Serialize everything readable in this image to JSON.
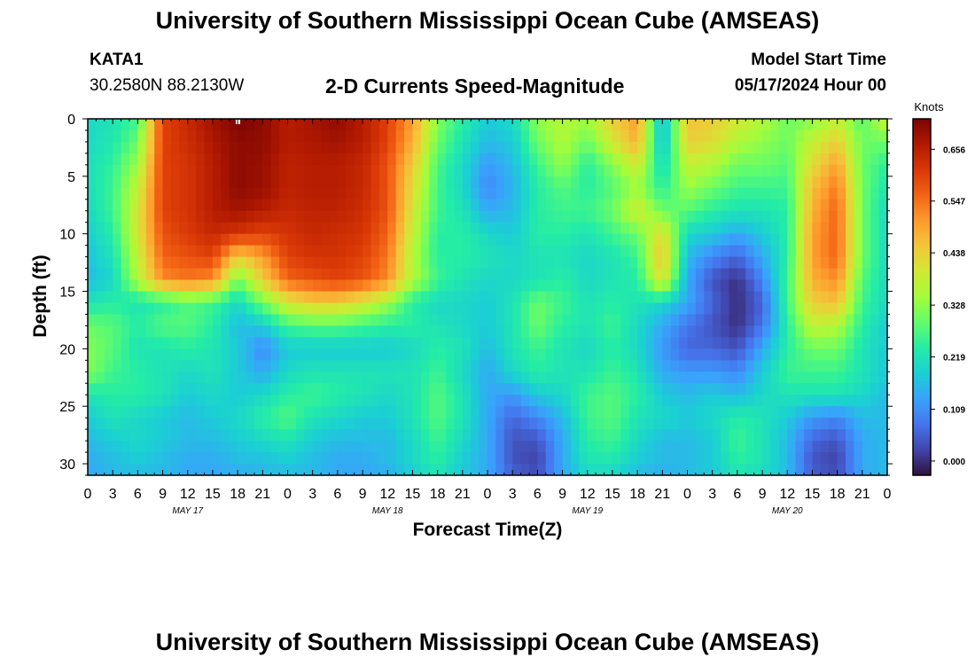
{
  "header": {
    "title": "University of Southern Mississippi Ocean Cube (AMSEAS)",
    "station_id": "KATA1",
    "coordinates": "30.2580N  88.2130W",
    "chart_title": "2-D Currents Speed-Magnitude",
    "model_start_label": "Model Start Time",
    "model_start_value": "05/17/2024 Hour 00"
  },
  "footer": {
    "title": "University of Southern Mississippi Ocean Cube (AMSEAS)"
  },
  "chart_data": {
    "type": "heatmap",
    "title": "2-D Currents Speed-Magnitude",
    "xlabel": "Forecast Time(Z)",
    "ylabel": "Depth (ft)",
    "x_range_hours": [
      0,
      96
    ],
    "y_range_ft": [
      0,
      31
    ],
    "x_tick_labels": [
      "0",
      "3",
      "6",
      "9",
      "12",
      "15",
      "18",
      "21",
      "0",
      "3",
      "6",
      "9",
      "12",
      "15",
      "18",
      "21",
      "0",
      "3",
      "6",
      "9",
      "12",
      "15",
      "18",
      "21",
      "0",
      "3",
      "6",
      "9",
      "12",
      "15",
      "18",
      "21",
      "0"
    ],
    "y_ticks": [
      0,
      5,
      10,
      15,
      20,
      25,
      30
    ],
    "y_tick_labels": [
      "0",
      "5",
      "10",
      "15",
      "20",
      "25",
      "30"
    ],
    "day_labels": [
      {
        "text": "MAY 17",
        "hour": 12
      },
      {
        "text": "MAY 18",
        "hour": 36
      },
      {
        "text": "MAY 19",
        "hour": 60
      },
      {
        "text": "MAY 20",
        "hour": 84
      }
    ],
    "colorbar": {
      "unit": "Knots",
      "range": [
        -0.03,
        0.72
      ],
      "ticks": [
        0.0,
        0.109,
        0.219,
        0.328,
        0.438,
        0.547,
        0.656
      ],
      "tick_labels": [
        "0.000",
        "0.109",
        "0.219",
        "0.328",
        "0.438",
        "0.547",
        "0.656"
      ]
    },
    "colors": {
      "speed_scale": [
        "#30123b",
        "#4145ab",
        "#4675ed",
        "#39a2fc",
        "#1bcfd4",
        "#24eca6",
        "#61fc6c",
        "#a4fc3b",
        "#d1e834",
        "#f3c63a",
        "#fe9b2d",
        "#f36315",
        "#d93806",
        "#b11901",
        "#7a0403"
      ]
    },
    "field_depths_ft": [
      0,
      2,
      4,
      6,
      8,
      10,
      12,
      14,
      16,
      18,
      20,
      22,
      24,
      26,
      28,
      30,
      31
    ],
    "field_hours": [
      0,
      3,
      6,
      9,
      12,
      15,
      18,
      21,
      24,
      27,
      30,
      33,
      36,
      39,
      42,
      45,
      48,
      51,
      54,
      57,
      60,
      63,
      66,
      69,
      72,
      75,
      78,
      81,
      84,
      87,
      90,
      93,
      96
    ],
    "speed_field_knots": [
      [
        0.2,
        0.22,
        0.26,
        0.6,
        0.64,
        0.68,
        0.72,
        0.7,
        0.66,
        0.68,
        0.7,
        0.66,
        0.6,
        0.5,
        0.32,
        0.24,
        0.18,
        0.2,
        0.33,
        0.36,
        0.34,
        0.44,
        0.5,
        0.15,
        0.46,
        0.44,
        0.4,
        0.36,
        0.3,
        0.32,
        0.38,
        0.28,
        0.4
      ],
      [
        0.2,
        0.23,
        0.3,
        0.6,
        0.63,
        0.67,
        0.7,
        0.7,
        0.66,
        0.67,
        0.68,
        0.66,
        0.6,
        0.48,
        0.3,
        0.22,
        0.16,
        0.18,
        0.3,
        0.36,
        0.3,
        0.4,
        0.48,
        0.16,
        0.44,
        0.42,
        0.36,
        0.33,
        0.3,
        0.38,
        0.44,
        0.3,
        0.3
      ],
      [
        0.21,
        0.25,
        0.34,
        0.6,
        0.62,
        0.66,
        0.7,
        0.69,
        0.65,
        0.66,
        0.66,
        0.64,
        0.58,
        0.44,
        0.27,
        0.2,
        0.12,
        0.16,
        0.26,
        0.33,
        0.24,
        0.32,
        0.4,
        0.2,
        0.38,
        0.36,
        0.3,
        0.3,
        0.28,
        0.42,
        0.5,
        0.3,
        0.24
      ],
      [
        0.21,
        0.26,
        0.38,
        0.6,
        0.62,
        0.66,
        0.7,
        0.69,
        0.65,
        0.66,
        0.66,
        0.64,
        0.58,
        0.42,
        0.26,
        0.2,
        0.1,
        0.15,
        0.24,
        0.28,
        0.24,
        0.28,
        0.34,
        0.24,
        0.34,
        0.3,
        0.26,
        0.26,
        0.26,
        0.46,
        0.54,
        0.3,
        0.22
      ],
      [
        0.2,
        0.26,
        0.4,
        0.6,
        0.62,
        0.66,
        0.68,
        0.66,
        0.64,
        0.65,
        0.65,
        0.63,
        0.58,
        0.4,
        0.26,
        0.22,
        0.14,
        0.16,
        0.24,
        0.26,
        0.26,
        0.3,
        0.4,
        0.3,
        0.28,
        0.24,
        0.22,
        0.22,
        0.24,
        0.48,
        0.56,
        0.3,
        0.2
      ],
      [
        0.18,
        0.24,
        0.4,
        0.58,
        0.61,
        0.64,
        0.62,
        0.6,
        0.62,
        0.64,
        0.63,
        0.62,
        0.56,
        0.38,
        0.24,
        0.24,
        0.2,
        0.18,
        0.24,
        0.24,
        0.22,
        0.26,
        0.3,
        0.42,
        0.2,
        0.18,
        0.14,
        0.18,
        0.24,
        0.5,
        0.56,
        0.3,
        0.2
      ],
      [
        0.17,
        0.22,
        0.38,
        0.56,
        0.58,
        0.6,
        0.44,
        0.5,
        0.6,
        0.62,
        0.62,
        0.6,
        0.54,
        0.36,
        0.24,
        0.24,
        0.22,
        0.2,
        0.22,
        0.22,
        0.2,
        0.22,
        0.26,
        0.46,
        0.16,
        0.1,
        0.06,
        0.14,
        0.24,
        0.5,
        0.56,
        0.3,
        0.2
      ],
      [
        0.16,
        0.2,
        0.36,
        0.52,
        0.54,
        0.52,
        0.3,
        0.44,
        0.56,
        0.58,
        0.6,
        0.58,
        0.52,
        0.36,
        0.26,
        0.22,
        0.2,
        0.2,
        0.22,
        0.24,
        0.2,
        0.22,
        0.24,
        0.42,
        0.14,
        0.04,
        0.0,
        0.1,
        0.26,
        0.48,
        0.52,
        0.28,
        0.2
      ],
      [
        0.22,
        0.24,
        0.22,
        0.24,
        0.28,
        0.26,
        0.2,
        0.3,
        0.4,
        0.44,
        0.44,
        0.4,
        0.34,
        0.24,
        0.2,
        0.2,
        0.18,
        0.22,
        0.3,
        0.26,
        0.22,
        0.24,
        0.22,
        0.2,
        0.14,
        0.06,
        0.0,
        0.06,
        0.26,
        0.44,
        0.46,
        0.26,
        0.2
      ],
      [
        0.3,
        0.28,
        0.24,
        0.28,
        0.28,
        0.24,
        0.16,
        0.18,
        0.26,
        0.28,
        0.28,
        0.26,
        0.24,
        0.24,
        0.22,
        0.2,
        0.18,
        0.22,
        0.3,
        0.24,
        0.22,
        0.26,
        0.2,
        0.14,
        0.08,
        0.04,
        0.0,
        0.08,
        0.24,
        0.38,
        0.36,
        0.24,
        0.18
      ],
      [
        0.32,
        0.28,
        0.22,
        0.22,
        0.24,
        0.22,
        0.18,
        0.1,
        0.18,
        0.18,
        0.18,
        0.18,
        0.18,
        0.2,
        0.24,
        0.22,
        0.16,
        0.22,
        0.26,
        0.22,
        0.2,
        0.24,
        0.2,
        0.12,
        0.06,
        0.06,
        0.04,
        0.14,
        0.24,
        0.3,
        0.3,
        0.22,
        0.18
      ],
      [
        0.32,
        0.26,
        0.24,
        0.22,
        0.2,
        0.22,
        0.18,
        0.14,
        0.2,
        0.22,
        0.22,
        0.22,
        0.22,
        0.22,
        0.26,
        0.2,
        0.14,
        0.2,
        0.24,
        0.22,
        0.22,
        0.26,
        0.22,
        0.14,
        0.12,
        0.12,
        0.1,
        0.18,
        0.26,
        0.26,
        0.26,
        0.22,
        0.18
      ],
      [
        0.22,
        0.24,
        0.24,
        0.22,
        0.18,
        0.2,
        0.18,
        0.2,
        0.24,
        0.26,
        0.24,
        0.22,
        0.2,
        0.22,
        0.28,
        0.22,
        0.14,
        0.12,
        0.18,
        0.2,
        0.26,
        0.28,
        0.24,
        0.18,
        0.16,
        0.18,
        0.16,
        0.2,
        0.22,
        0.22,
        0.22,
        0.2,
        0.16
      ],
      [
        0.18,
        0.22,
        0.2,
        0.18,
        0.16,
        0.18,
        0.2,
        0.24,
        0.28,
        0.22,
        0.2,
        0.18,
        0.18,
        0.22,
        0.28,
        0.22,
        0.14,
        0.06,
        0.1,
        0.16,
        0.26,
        0.28,
        0.22,
        0.2,
        0.18,
        0.2,
        0.24,
        0.22,
        0.18,
        0.12,
        0.1,
        0.16,
        0.16
      ],
      [
        0.16,
        0.18,
        0.2,
        0.18,
        0.16,
        0.16,
        0.18,
        0.2,
        0.22,
        0.18,
        0.16,
        0.16,
        0.16,
        0.2,
        0.26,
        0.2,
        0.14,
        0.04,
        0.04,
        0.14,
        0.24,
        0.26,
        0.2,
        0.16,
        0.16,
        0.18,
        0.26,
        0.22,
        0.16,
        0.06,
        0.04,
        0.14,
        0.16
      ],
      [
        0.14,
        0.16,
        0.18,
        0.16,
        0.14,
        0.14,
        0.16,
        0.16,
        0.18,
        0.16,
        0.14,
        0.14,
        0.16,
        0.2,
        0.24,
        0.18,
        0.14,
        0.04,
        0.02,
        0.14,
        0.22,
        0.22,
        0.18,
        0.16,
        0.16,
        0.18,
        0.24,
        0.22,
        0.16,
        0.04,
        0.02,
        0.14,
        0.16
      ],
      [
        0.14,
        0.16,
        0.16,
        0.16,
        0.14,
        0.14,
        0.14,
        0.16,
        0.16,
        0.16,
        0.14,
        0.14,
        0.14,
        0.18,
        0.22,
        0.18,
        0.14,
        0.06,
        0.04,
        0.14,
        0.2,
        0.2,
        0.16,
        0.14,
        0.16,
        0.18,
        0.22,
        0.2,
        0.16,
        0.06,
        0.04,
        0.14,
        0.16
      ]
    ]
  }
}
